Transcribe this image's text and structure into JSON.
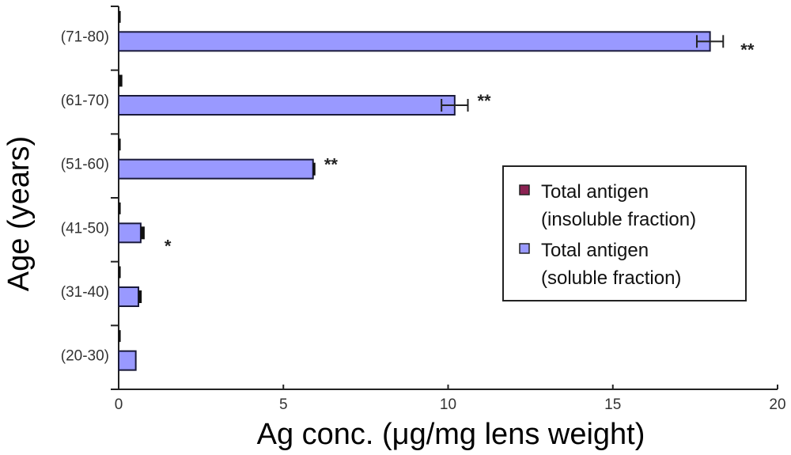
{
  "chart_data": {
    "type": "bar",
    "orientation": "horizontal",
    "title": "",
    "xlabel": "Ag conc. (μg/mg lens weight)",
    "ylabel": "Age (years)",
    "xlim": [
      0,
      20
    ],
    "xticks": [
      0,
      5,
      10,
      15,
      20
    ],
    "grid": false,
    "categories": [
      "(71-80)",
      "(61-70)",
      "(51-60)",
      "(41-50)",
      "(31-40)",
      "(20-30)"
    ],
    "series": [
      {
        "name": "Total antigen (insoluble fraction)",
        "legend_lines": [
          "Total antigen",
          "(insoluble fraction)"
        ],
        "color": "#8b2252",
        "values": [
          0.05,
          0.1,
          0.05,
          0.05,
          0.05,
          0.05
        ],
        "errors": [
          0.05,
          0.05,
          0.05,
          0.05,
          0.05,
          0.05
        ]
      },
      {
        "name": "Total antigen (soluble fraction)",
        "legend_lines": [
          "Total antigen",
          "(soluble fraction)"
        ],
        "color": "#9999ff",
        "values": [
          17.95,
          10.2,
          5.9,
          0.67,
          0.6,
          0.52
        ],
        "errors": [
          0.4,
          0.4,
          0.05,
          0.12,
          0.1,
          0.0
        ]
      }
    ],
    "annotations": [
      "**",
      "**",
      "**",
      "*",
      "",
      ""
    ],
    "legend": {
      "placement": "center-right"
    }
  }
}
